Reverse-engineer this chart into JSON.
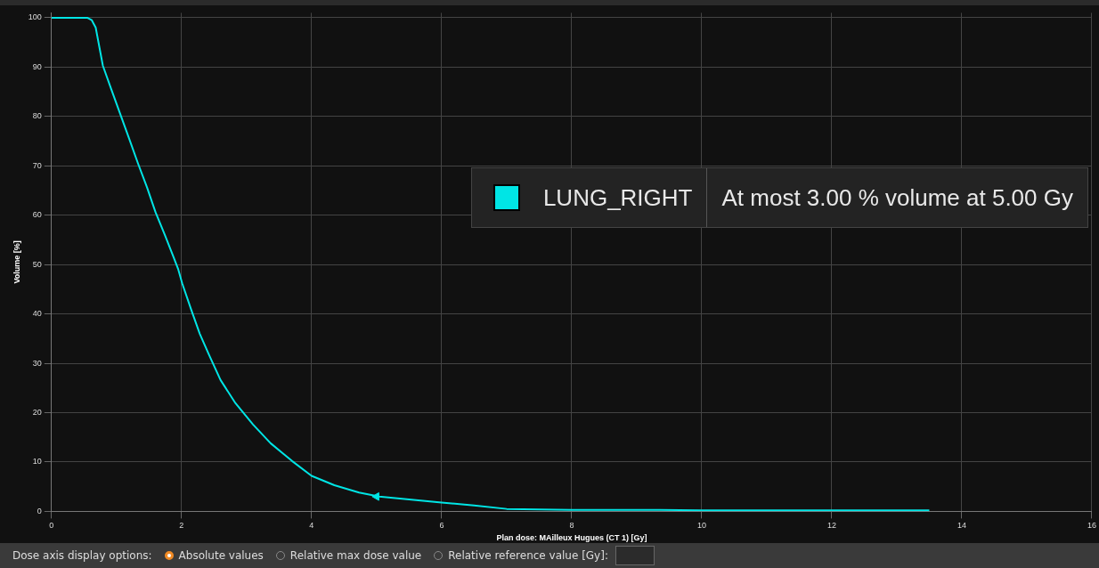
{
  "chart_data": {
    "type": "line",
    "xlabel": "Plan dose: MAilleux Hugues (CT 1) [Gy]",
    "ylabel": "Volume [%]",
    "xlim": [
      0,
      16
    ],
    "xticks": [
      0,
      2,
      4,
      6,
      8,
      10,
      12,
      14,
      16
    ],
    "ylim": [
      0,
      101
    ],
    "yticks": [
      0,
      10,
      20,
      30,
      40,
      50,
      60,
      70,
      80,
      90,
      100
    ],
    "grid": true,
    "legend": "right",
    "line_style": "solid",
    "series": [
      {
        "name": "LUNG_RIGHT",
        "color": "#00e5e5",
        "x": [
          0,
          0.3,
          0.55,
          0.62,
          0.68,
          0.79,
          0.92,
          1.06,
          1.2,
          1.33,
          1.47,
          1.6,
          1.75,
          1.875,
          1.95,
          2.01,
          2.15,
          2.28,
          2.42,
          2.6,
          2.83,
          3.1,
          3.37,
          3.7,
          4.0,
          4.35,
          4.73,
          5.04,
          5.5,
          6.0,
          6.5,
          7.0,
          7.5,
          8.0,
          9.35,
          10,
          11,
          12,
          13.5
        ],
        "values": [
          100,
          100,
          100,
          99.5,
          98,
          90.3,
          85.5,
          80.4,
          75.3,
          70.5,
          65.6,
          60.6,
          55.8,
          51.6,
          49,
          46.2,
          40.8,
          36,
          31.8,
          26.6,
          21.9,
          17.6,
          13.8,
          10.2,
          7.2,
          5.3,
          3.8,
          3.0,
          2.4,
          1.8,
          1.2,
          0.5,
          0.4,
          0.3,
          0.3,
          0.2,
          0.2,
          0.2,
          0.2
        ]
      },
      {
        "type": "scatter",
        "color": "#00e5e5",
        "x": [
          5
        ],
        "values": [
          3
        ]
      }
    ],
    "annotations": [
      "At most 3.00 % volume at 5.00 Gy",
      "Dose axis display options:",
      "Absolute values",
      "Relative max dose value",
      "Relative reference value [Gy]:"
    ]
  }
}
